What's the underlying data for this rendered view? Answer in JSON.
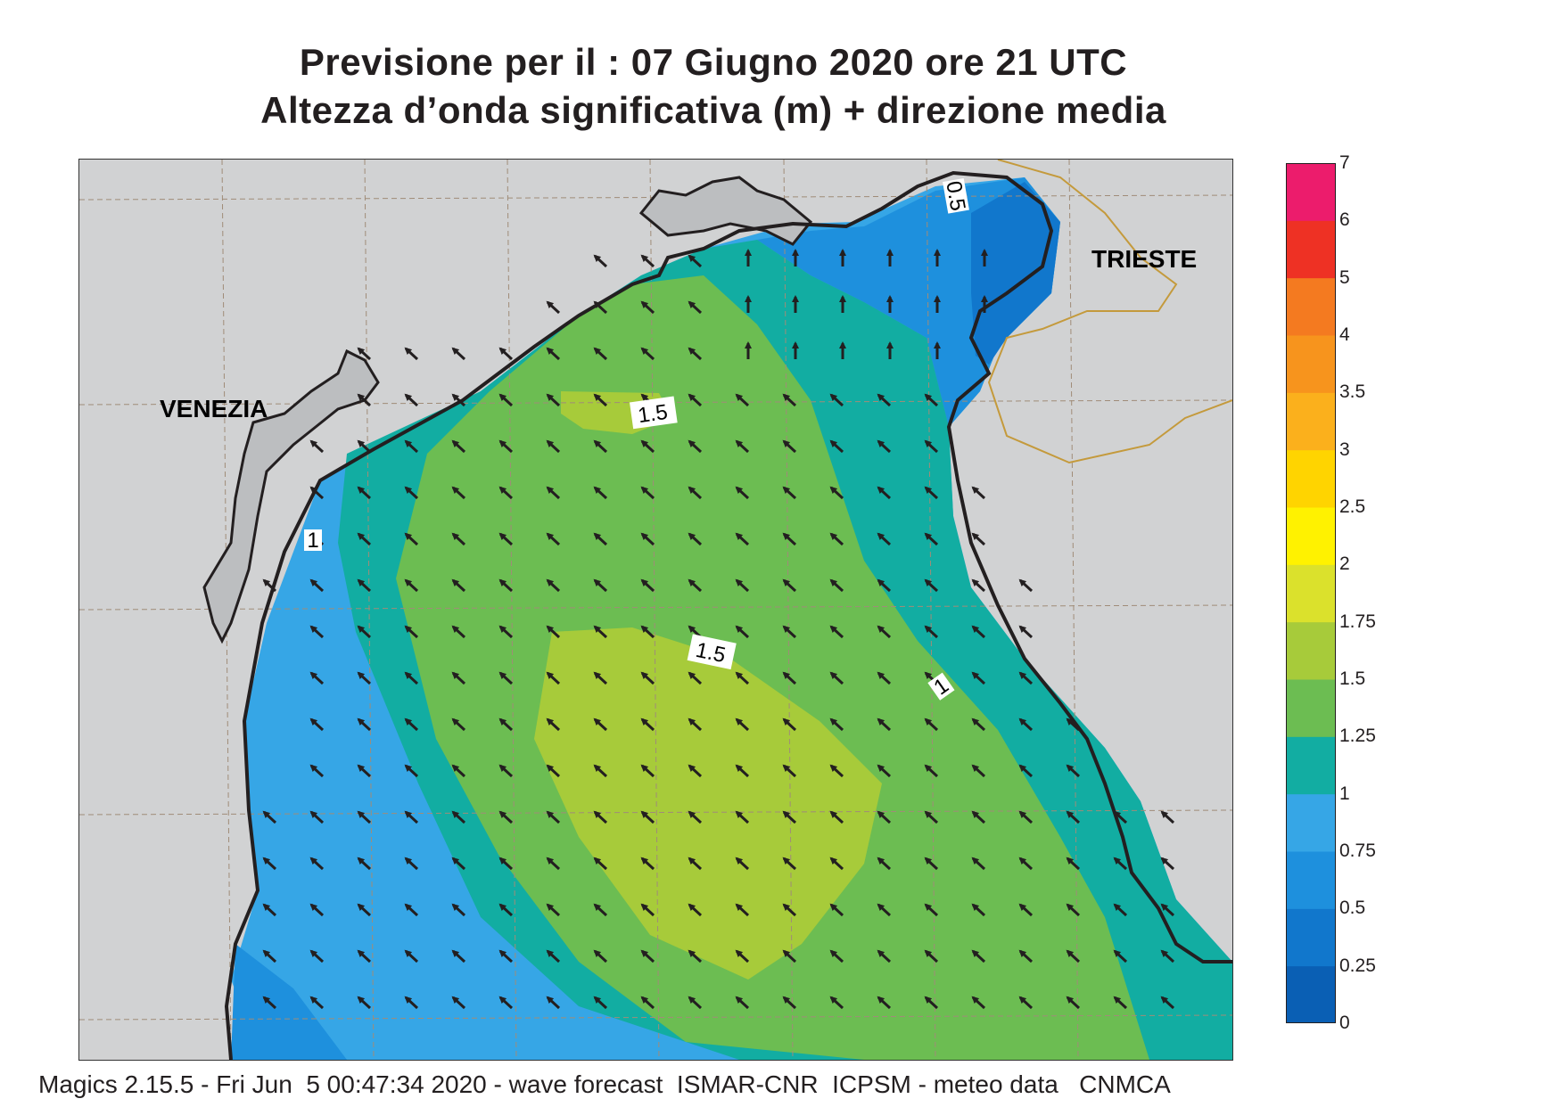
{
  "title_line1": "Previsione per il  :  07   Giugno  2020   ore 21 UTC",
  "title_line2": "Altezza d’onda significativa (m) + direzione media",
  "footer": "Magics 2.15.5 - Fri Jun  5 00:47:34 2020 - wave forecast  ISMAR-CNR  ICPSM - meteo data   CNMCA",
  "cities": {
    "venezia": "VENEZIA",
    "trieste": "TRIESTE"
  },
  "contour_labels": [
    "1.5",
    "1.5",
    "1",
    "1",
    "0.5"
  ],
  "colorbar": {
    "unit": "m",
    "levels": [
      "0",
      "0.25",
      "0.5",
      "0.75",
      "1",
      "1.25",
      "1.5",
      "1.75",
      "2",
      "2.5",
      "3",
      "3.5",
      "4",
      "5",
      "6",
      "7"
    ],
    "colors": [
      "#0a5fb4",
      "#1177cc",
      "#1e90dd",
      "#36a6e6",
      "#12ada2",
      "#6cbd52",
      "#a7cb3a",
      "#dbe12c",
      "#fff200",
      "#ffd400",
      "#fbb01c",
      "#f7941d",
      "#f47a20",
      "#ee3124",
      "#ec1c6c"
    ]
  },
  "arrow_direction": "north-west",
  "colors": {
    "land": "#d1d2d3",
    "coast": "#231f20",
    "border": "#c49a3c",
    "grid": "#a08c78",
    "arrow": "#231f20"
  }
}
